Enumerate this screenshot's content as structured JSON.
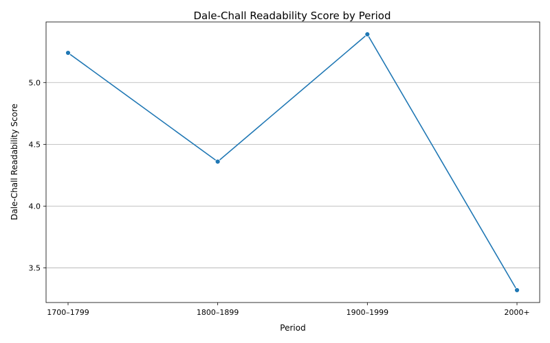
{
  "chart_data": {
    "type": "line",
    "title": "Dale-Chall Readability Score by Period",
    "xlabel": "Period",
    "ylabel": "Dale-Chall Readability Score",
    "categories": [
      "1700–1799",
      "1800–1899",
      "1900–1999",
      "2000+"
    ],
    "series": [
      {
        "values": [
          5.24,
          4.36,
          5.39,
          3.32
        ]
      }
    ],
    "ylim": [
      3.22,
      5.49
    ],
    "yticks": [
      3.5,
      4.0,
      4.5,
      5.0
    ],
    "ytick_labels": [
      "3.5",
      "4.0",
      "4.5",
      "5.0"
    ],
    "grid": "y-major",
    "line_color": "#1f77b4"
  }
}
